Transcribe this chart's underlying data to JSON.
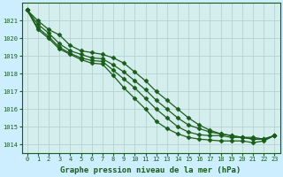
{
  "title": "Graphe pression niveau de la mer (hPa)",
  "background_color": "#cceeff",
  "plot_bg_color": "#d4eeee",
  "line_color": "#1a5c1a",
  "grid_color": "#b0cccc",
  "xlim": [
    -0.5,
    23.5
  ],
  "ylim": [
    1013.5,
    1022.0
  ],
  "yticks": [
    1014,
    1015,
    1016,
    1017,
    1018,
    1019,
    1020,
    1021
  ],
  "xticks": [
    0,
    1,
    2,
    3,
    4,
    5,
    6,
    7,
    8,
    9,
    10,
    11,
    12,
    13,
    14,
    15,
    16,
    17,
    18,
    19,
    20,
    21,
    22,
    23
  ],
  "series": [
    [
      1021.6,
      1021.0,
      1020.5,
      1020.2,
      1019.6,
      1019.3,
      1019.2,
      1019.1,
      1018.9,
      1018.6,
      1018.1,
      1017.6,
      1017.0,
      1016.5,
      1016.0,
      1015.5,
      1015.1,
      1014.8,
      1014.6,
      1014.5,
      1014.4,
      1014.4,
      1014.3,
      1014.5
    ],
    [
      1021.6,
      1020.8,
      1020.3,
      1019.7,
      1019.3,
      1019.1,
      1018.9,
      1018.85,
      1018.5,
      1018.1,
      1017.6,
      1017.1,
      1016.5,
      1016.0,
      1015.5,
      1015.1,
      1014.9,
      1014.7,
      1014.6,
      1014.5,
      1014.4,
      1014.3,
      1014.3,
      1014.5
    ],
    [
      1021.6,
      1020.6,
      1020.1,
      1019.5,
      1019.15,
      1018.9,
      1018.75,
      1018.7,
      1018.2,
      1017.7,
      1017.2,
      1016.6,
      1016.0,
      1015.5,
      1015.0,
      1014.7,
      1014.55,
      1014.5,
      1014.5,
      1014.4,
      1014.4,
      1014.3,
      1014.3,
      1014.5
    ],
    [
      1021.6,
      1020.5,
      1020.0,
      1019.4,
      1019.1,
      1018.8,
      1018.6,
      1018.55,
      1017.9,
      1017.2,
      1016.6,
      1016.0,
      1015.3,
      1014.9,
      1014.6,
      1014.4,
      1014.3,
      1014.25,
      1014.2,
      1014.2,
      1014.2,
      1014.1,
      1014.2,
      1014.5
    ]
  ],
  "marker": "D",
  "markersize": 2.5,
  "linewidth": 0.9,
  "title_fontsize": 6.5,
  "tick_fontsize": 5.0
}
